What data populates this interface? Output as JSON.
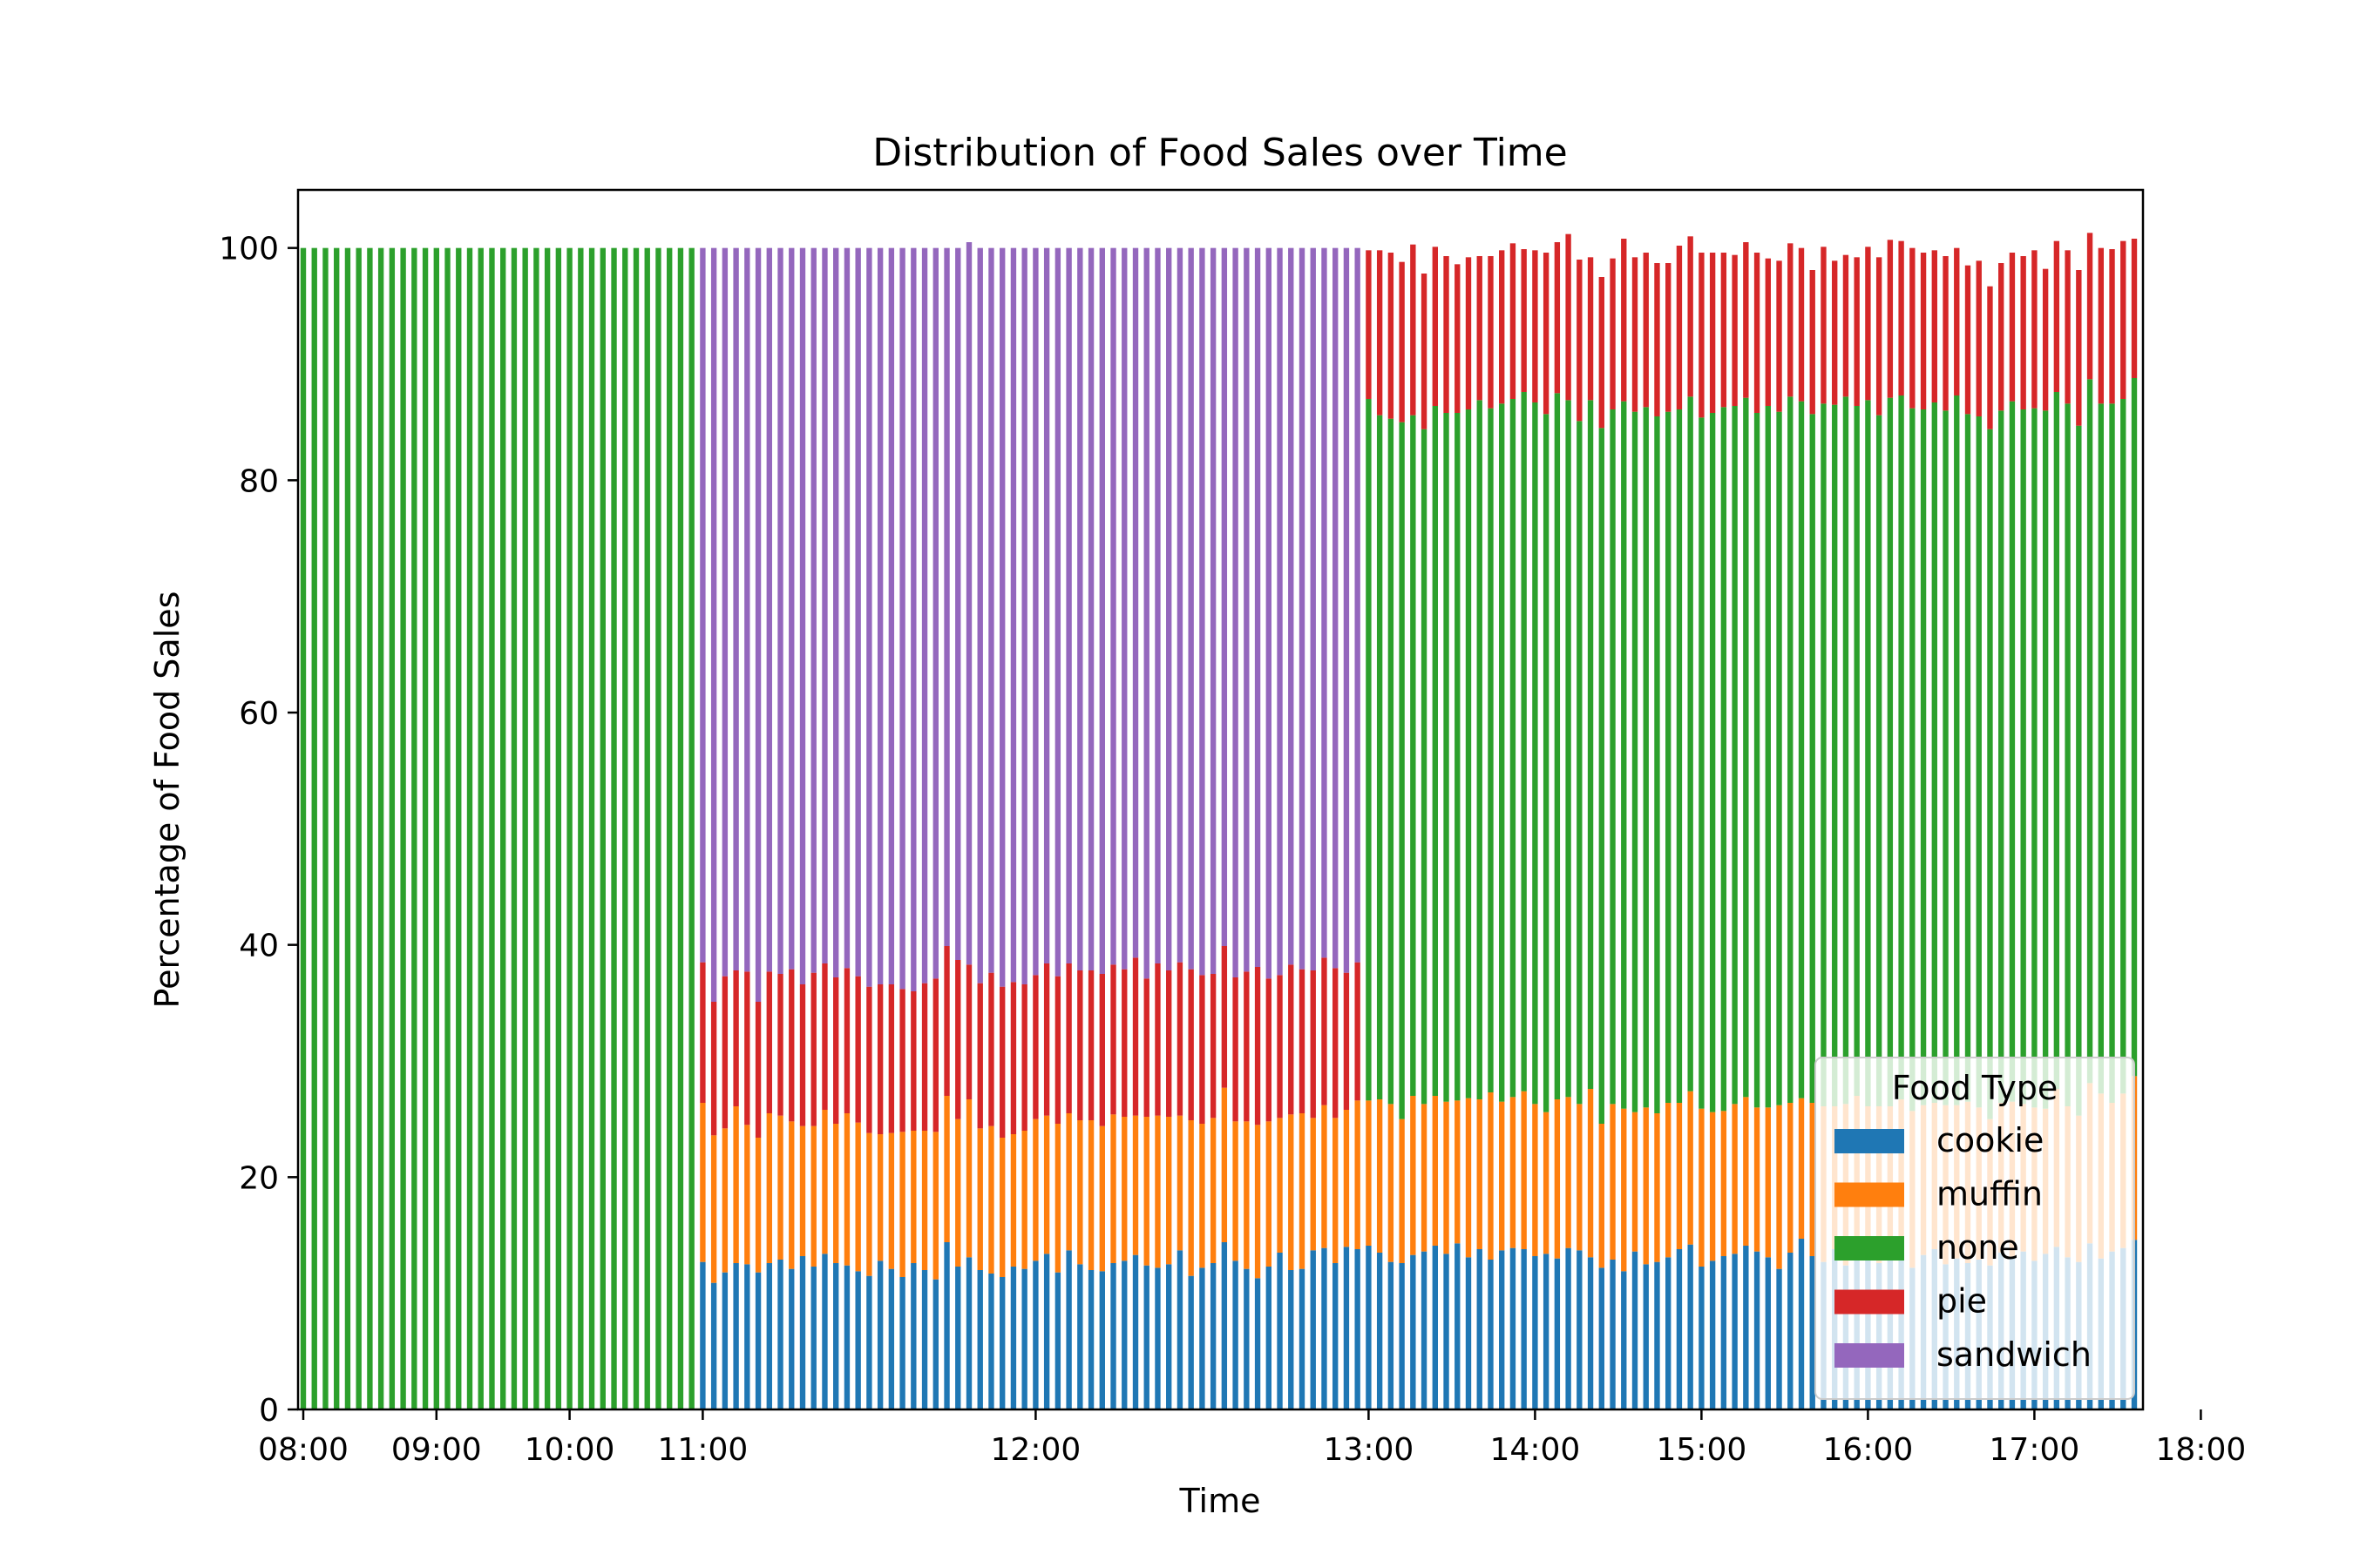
{
  "chart_data": {
    "type": "bar",
    "stacked": true,
    "title": "Distribution of Food Sales over Time",
    "xlabel": "Time",
    "ylabel": "Percentage of Food Sales",
    "ylim": [
      0,
      105
    ],
    "yticks": [
      0,
      20,
      40,
      60,
      80,
      100
    ],
    "xticks": [
      "08:00",
      "09:00",
      "10:00",
      "11:00",
      "12:00",
      "13:00",
      "14:00",
      "15:00",
      "16:00",
      "17:00",
      "18:00"
    ],
    "xtick_positions_category_index": [
      0,
      12,
      24,
      36,
      66,
      96,
      111,
      126,
      141,
      156,
      171
    ],
    "category_interval_minutes": 5,
    "grid": false,
    "legend": {
      "title": "Food Type",
      "placement": "lower right",
      "entries": [
        "cookie",
        "muffin",
        "none",
        "pie",
        "sandwich"
      ]
    },
    "colors": {
      "cookie": "#1f77b4",
      "muffin": "#ff7f0e",
      "none": "#2ca02c",
      "pie": "#d62728",
      "sandwich": "#9467bd"
    },
    "segments": [
      {
        "period": "08:00–10:55",
        "composition": {
          "cookie": 0,
          "muffin": 0,
          "none": 100,
          "pie": 0,
          "sandwich": 0
        }
      },
      {
        "period": "11:00–12:55",
        "composition_approx": {
          "cookie": 12.5,
          "muffin": 12.5,
          "none": 0,
          "pie": 12.5,
          "sandwich": 62.5
        }
      },
      {
        "period": "13:00–18:00",
        "composition_approx": {
          "cookie": 13,
          "muffin": 13,
          "none": 60,
          "pie": 14,
          "sandwich": 0
        }
      }
    ],
    "series": [
      {
        "name": "cookie",
        "values": [
          0,
          0,
          0,
          0,
          0,
          0,
          0,
          0,
          0,
          0,
          0,
          0,
          0,
          0,
          0,
          0,
          0,
          0,
          0,
          0,
          0,
          0,
          0,
          0,
          0,
          0,
          0,
          0,
          0,
          0,
          0,
          0,
          0,
          0,
          0,
          0,
          12.7,
          10.9,
          11.8,
          12.6,
          12.5,
          11.8,
          12.6,
          12.9,
          12.1,
          13.2,
          12.3,
          13.4,
          12.6,
          12.4,
          11.9,
          11.5,
          12.8,
          12.1,
          11.4,
          12.6,
          12.0,
          11.2,
          14.4,
          12.3,
          13.1,
          12.0,
          11.7,
          11.4,
          12.3,
          12.1,
          12.8,
          13.4,
          11.8,
          13.7,
          12.5,
          12.0,
          11.9,
          12.6,
          12.8,
          13.3,
          12.4,
          12.2,
          12.5,
          13.7,
          11.5,
          12.2,
          12.6,
          14.4,
          12.8,
          12.1,
          11.3,
          12.3,
          13.5,
          12.0,
          12.1,
          13.7,
          13.9,
          12.6,
          14.0,
          13.8,
          14.1,
          13.5,
          12.7,
          12.6,
          13.3,
          13.6,
          14.1,
          13.4,
          14.3,
          13.1,
          13.8,
          12.9,
          13.7,
          13.9,
          13.8,
          13.2,
          13.4,
          13.0,
          13.9,
          13.7,
          13.1,
          12.2,
          12.9,
          11.9,
          13.6,
          12.5,
          12.7,
          13.1,
          13.8,
          14.2,
          12.3,
          12.8,
          13.2,
          13.4,
          14.1,
          13.6,
          13.1,
          12.1,
          13.5,
          14.7,
          13.2,
          12.7,
          13.8,
          12.4,
          13.0,
          13.3,
          12.6,
          13.4,
          12.9,
          12.2,
          13.3,
          13.8,
          12.5,
          13.0,
          12.6,
          12.9,
          12.4,
          13.5,
          13.1,
          13.6,
          12.8,
          13.4,
          14.0,
          13.1,
          12.7,
          14.3,
          13.0,
          13.6,
          13.9,
          14.6
        ]
      },
      {
        "name": "muffin",
        "values": [
          0,
          0,
          0,
          0,
          0,
          0,
          0,
          0,
          0,
          0,
          0,
          0,
          0,
          0,
          0,
          0,
          0,
          0,
          0,
          0,
          0,
          0,
          0,
          0,
          0,
          0,
          0,
          0,
          0,
          0,
          0,
          0,
          0,
          0,
          0,
          0,
          13.7,
          12.7,
          12.4,
          13.5,
          12.0,
          11.6,
          12.9,
          12.4,
          12.7,
          11.2,
          12.1,
          12.4,
          12.0,
          13.1,
          12.8,
          12.3,
          10.9,
          11.7,
          12.5,
          11.4,
          12.0,
          12.7,
          12.6,
          12.7,
          13.6,
          12.2,
          12.7,
          12.0,
          11.4,
          11.9,
          12.2,
          11.9,
          12.8,
          11.8,
          12.4,
          12.9,
          12.5,
          12.8,
          12.4,
          12.0,
          12.8,
          13.1,
          12.7,
          11.6,
          13.4,
          12.4,
          12.5,
          13.3,
          12.0,
          12.7,
          13.2,
          12.5,
          11.6,
          13.4,
          13.4,
          11.4,
          12.3,
          12.5,
          11.8,
          12.8,
          12.5,
          13.2,
          13.6,
          12.4,
          13.7,
          12.7,
          12.9,
          13.1,
          12.3,
          13.7,
          12.9,
          14.4,
          12.8,
          13.0,
          13.6,
          13.1,
          12.2,
          13.7,
          13.0,
          12.6,
          14.5,
          12.4,
          13.4,
          14.0,
          12.0,
          13.5,
          12.8,
          13.3,
          12.6,
          13.2,
          13.6,
          12.8,
          12.5,
          12.9,
          12.8,
          12.4,
          12.9,
          14.1,
          12.9,
          12.1,
          13.2,
          13.4,
          12.3,
          13.9,
          14.0,
          12.8,
          13.5,
          12.7,
          13.8,
          13.5,
          12.9,
          12.6,
          13.7,
          13.2,
          13.9,
          13.1,
          12.6,
          12.9,
          13.4,
          12.7,
          13.2,
          12.5,
          13.6,
          13.0,
          12.6,
          13.8,
          14.2,
          12.8,
          13.3,
          14.1
        ]
      },
      {
        "name": "none",
        "values": [
          100,
          100,
          100,
          100,
          100,
          100,
          100,
          100,
          100,
          100,
          100,
          100,
          100,
          100,
          100,
          100,
          100,
          100,
          100,
          100,
          100,
          100,
          100,
          100,
          100,
          100,
          100,
          100,
          100,
          100,
          100,
          100,
          100,
          100,
          100,
          100,
          0,
          0,
          0,
          0,
          0,
          0,
          0,
          0,
          0,
          0,
          0,
          0,
          0,
          0,
          0,
          0,
          0,
          0,
          0,
          0,
          0,
          0,
          0,
          0,
          0,
          0,
          0,
          0,
          0,
          0,
          0,
          0,
          0,
          0,
          0,
          0,
          0,
          0,
          0,
          0,
          0,
          0,
          0,
          0,
          0,
          0,
          0,
          0,
          0,
          0,
          0,
          0,
          0,
          0,
          0,
          0,
          0,
          0,
          0,
          0,
          60.4,
          58.9,
          59.0,
          60.0,
          58.6,
          58.1,
          59.4,
          59.3,
          59.2,
          59.3,
          60.2,
          58.9,
          60.1,
          60.1,
          60.2,
          60.4,
          60.1,
          60.8,
          60.0,
          58.8,
          59.3,
          59.9,
          59.8,
          60.9,
          60.3,
          60.3,
          60.0,
          59.5,
          59.7,
          59.8,
          59.5,
          60.2,
          60.6,
          60.1,
          60.2,
          59.8,
          60.4,
          59.7,
          60.8,
          60.0,
          59.3,
          60.5,
          60.4,
          60.9,
          59.4,
          60.8,
          59.5,
          61.0,
          60.6,
          60.5,
          59.9,
          60.3,
          59.8,
          61.1,
          59.2,
          59.5,
          59.4,
          59.6,
          60.3,
          59.8,
          60.2,
          60.1,
          60.0,
          60.5,
          59.4,
          60.6,
          59.4,
          60.2,
          59.8,
          60.1,
          59.6,
          59.4,
          58.8,
          59.9,
          58.9,
          59.1
        ]
      },
      {
        "name": "pie",
        "values": [
          0,
          0,
          0,
          0,
          0,
          0,
          0,
          0,
          0,
          0,
          0,
          0,
          0,
          0,
          0,
          0,
          0,
          0,
          0,
          0,
          0,
          0,
          0,
          0,
          0,
          0,
          0,
          0,
          0,
          0,
          0,
          0,
          0,
          0,
          0,
          0,
          12.1,
          11.5,
          13.1,
          11.7,
          13.2,
          11.7,
          12.2,
          12.2,
          13.1,
          12.2,
          13.2,
          12.6,
          12.6,
          12.5,
          12.6,
          12.6,
          12.9,
          12.8,
          12.3,
          12.0,
          12.7,
          13.2,
          12.9,
          13.7,
          11.6,
          12.5,
          13.2,
          13.0,
          13.1,
          12.6,
          12.4,
          13.1,
          12.7,
          12.9,
          12.9,
          12.9,
          13.1,
          12.9,
          12.7,
          13.6,
          11.9,
          13.1,
          12.6,
          13.2,
          13.0,
          12.8,
          12.4,
          12.2,
          12.4,
          12.9,
          13.6,
          12.3,
          12.3,
          12.9,
          12.4,
          12.7,
          12.7,
          12.9,
          11.8,
          11.9,
          12.8,
          14.2,
          14.3,
          13.8,
          14.7,
          13.4,
          13.7,
          13.5,
          12.8,
          13.1,
          12.4,
          13.1,
          13.2,
          13.4,
          12.3,
          13.1,
          13.9,
          13.0,
          14.3,
          13.9,
          12.3,
          13.0,
          13.0,
          14.0,
          13.3,
          13.3,
          13.2,
          12.8,
          14.1,
          13.8,
          14.2,
          13.8,
          13.3,
          13.0,
          13.4,
          13.8,
          12.7,
          13.0,
          13.2,
          13.2,
          12.4,
          13.5,
          12.4,
          12.2,
          12.8,
          13.2,
          13.6,
          13.6,
          13.3,
          13.8,
          13.5,
          13.1,
          13.3,
          12.7,
          12.8,
          13.4,
          12.3,
          12.7,
          12.8,
          13.2,
          13.6,
          12.2,
          13.0,
          13.2,
          13.4,
          12.6,
          13.4,
          13.3,
          13.6,
          12.0
        ]
      },
      {
        "name": "sandwich",
        "values": [
          0,
          0,
          0,
          0,
          0,
          0,
          0,
          0,
          0,
          0,
          0,
          0,
          0,
          0,
          0,
          0,
          0,
          0,
          0,
          0,
          0,
          0,
          0,
          0,
          0,
          0,
          0,
          0,
          0,
          0,
          0,
          0,
          0,
          0,
          0,
          0,
          61.5,
          64.9,
          62.7,
          62.2,
          62.3,
          64.9,
          62.3,
          62.5,
          62.1,
          63.4,
          62.4,
          61.6,
          62.8,
          62.0,
          62.7,
          63.6,
          63.4,
          63.4,
          63.8,
          64.0,
          63.3,
          62.9,
          60.1,
          61.3,
          62.2,
          63.3,
          62.4,
          63.6,
          63.2,
          63.4,
          62.6,
          61.6,
          62.7,
          61.6,
          62.2,
          62.2,
          62.5,
          61.7,
          62.1,
          61.1,
          62.9,
          61.6,
          62.2,
          61.5,
          62.1,
          62.6,
          62.5,
          60.1,
          62.8,
          62.3,
          61.9,
          62.9,
          62.6,
          61.7,
          62.1,
          62.2,
          61.1,
          62.0,
          62.4,
          61.5,
          0,
          0,
          0,
          0,
          0,
          0,
          0,
          0,
          0,
          0,
          0,
          0,
          0,
          0,
          0,
          0,
          0,
          0,
          0,
          0,
          0,
          0,
          0,
          0,
          0,
          0,
          0,
          0,
          0,
          0,
          0,
          0,
          0,
          0,
          0,
          0,
          0,
          0,
          0,
          0,
          0,
          0,
          0,
          0,
          0,
          0,
          0,
          0,
          0,
          0,
          0,
          0,
          0,
          0,
          0,
          0,
          0,
          0,
          0,
          0,
          0,
          0,
          0,
          0,
          0,
          0,
          0,
          0,
          0,
          0,
          0,
          0,
          0,
          0,
          0,
          0
        ]
      }
    ]
  }
}
